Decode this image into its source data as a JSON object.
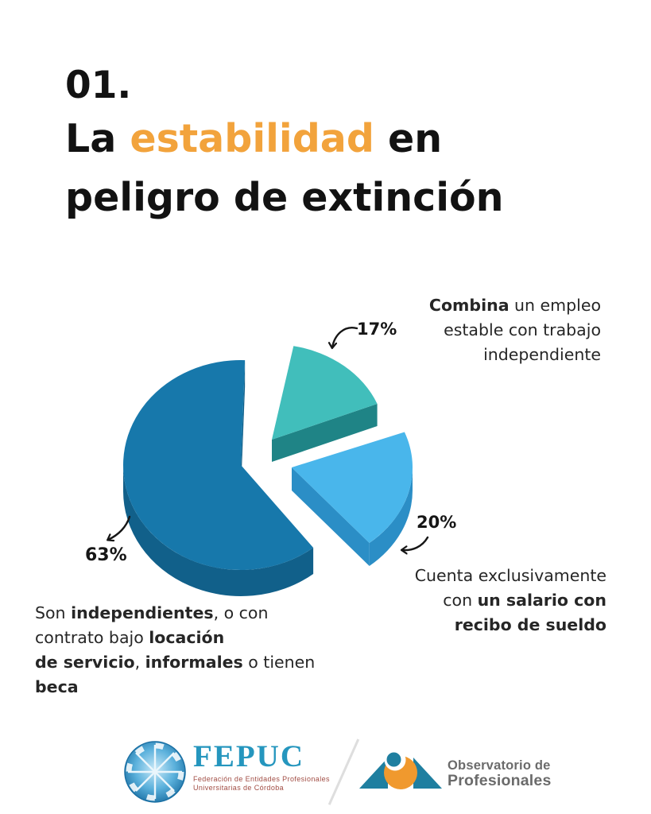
{
  "colors": {
    "accent_orange": "#F2A33C",
    "text_dark": "#121212",
    "body_text": "#262626",
    "slice_63_top": "#1778AB",
    "slice_63_side": "#11608A",
    "slice_17_top": "#41BEBB",
    "slice_17_side": "#1F8486",
    "slice_20_top": "#49B6EB",
    "slice_20_side": "#2B8EC6",
    "fepuc_blue": "#2596BE",
    "fepuc_tagline_red": "#A14D44",
    "obs_gray": "#6B6B6B",
    "obs_teal": "#1F7FA0",
    "obs_orange": "#F0992E"
  },
  "title": {
    "number": "01.",
    "line_parts": [
      {
        "t": "La "
      },
      {
        "t": "estabilidad",
        "c": "accent_orange"
      },
      {
        "t": " en\npeligro de extinción"
      }
    ]
  },
  "chart_data": {
    "type": "pie",
    "style": "3d-exploded",
    "unit": "%",
    "legend_position": "callout-labels",
    "slices": [
      {
        "value": 63,
        "pct_label": "63%",
        "label": "Son independientes, o con contrato bajo locación de servicio, informales o tienen beca",
        "color_top": "#1778AB",
        "color_side": "#11608A"
      },
      {
        "value": 17,
        "pct_label": "17%",
        "label": "Combina un empleo estable con trabajo independiente",
        "color_top": "#41BEBB",
        "color_side": "#1F8486"
      },
      {
        "value": 20,
        "pct_label": "20%",
        "label": "Cuenta exclusivamente con un salario con recibo de sueldo",
        "color_top": "#49B6EB",
        "color_side": "#2B8EC6"
      }
    ]
  },
  "annotations": {
    "combina": {
      "parts": [
        {
          "t": "Combina",
          "b": true
        },
        {
          "t": " un empleo\nestable con trabajo\nindependiente"
        }
      ]
    },
    "cuenta": {
      "parts": [
        {
          "t": "Cuenta exclusivamente\ncon "
        },
        {
          "t": "un salario con\nrecibo de sueldo",
          "b": true
        }
      ]
    },
    "son": {
      "parts": [
        {
          "t": "Son "
        },
        {
          "t": "independientes",
          "b": true
        },
        {
          "t": ", o con\ncontrato bajo "
        },
        {
          "t": "locación\nde servicio",
          "b": true
        },
        {
          "t": ", "
        },
        {
          "t": "informales",
          "b": true
        },
        {
          "t": " o tienen\n"
        },
        {
          "t": "beca",
          "b": true
        }
      ]
    }
  },
  "footer": {
    "fepuc": {
      "name": "FEPUC",
      "tagline_line1": "Federación de Entidades Profesionales",
      "tagline_line2": "Universitarias de Córdoba"
    },
    "observatorio": {
      "line1": "Observatorio de",
      "line2": "Profesionales"
    }
  }
}
